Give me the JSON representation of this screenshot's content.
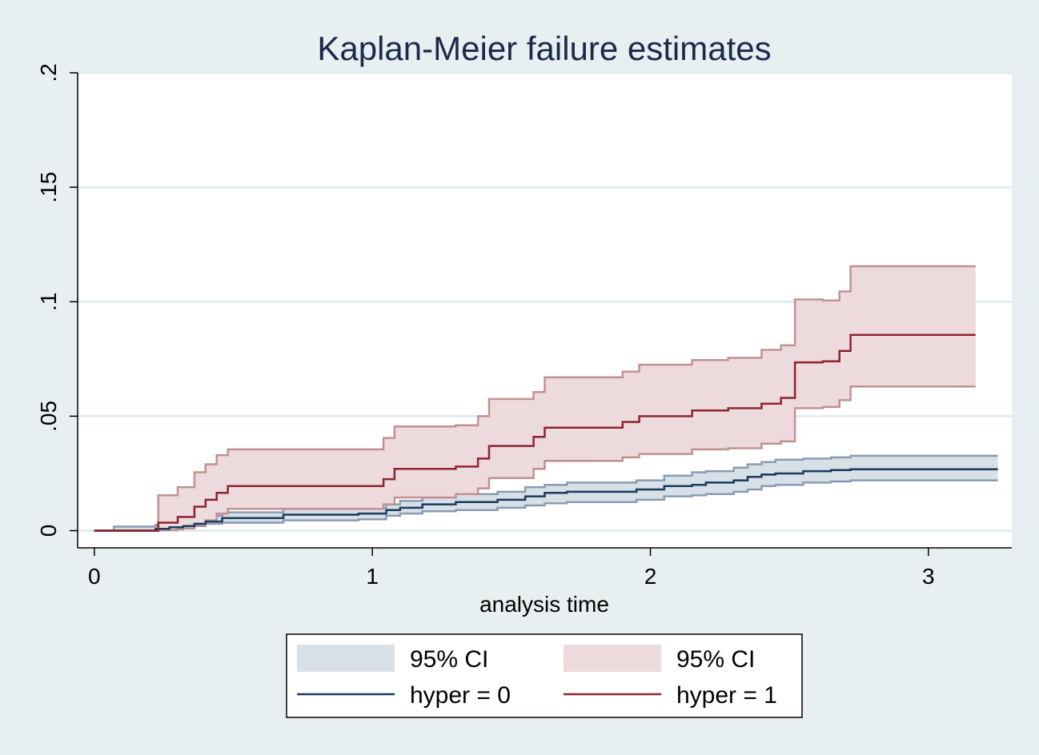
{
  "chart_data": {
    "type": "line",
    "title": "Kaplan-Meier failure estimates",
    "xlabel": "analysis time",
    "ylabel": "",
    "xlim": [
      -0.06,
      3.3
    ],
    "ylim": [
      -0.0075,
      0.2
    ],
    "x_ticks": [
      0,
      1,
      2,
      3
    ],
    "x_tick_labels": [
      "0",
      "1",
      "2",
      "3"
    ],
    "y_ticks": [
      0,
      0.05,
      0.1,
      0.15,
      0.2
    ],
    "y_tick_labels": [
      "0",
      ".05",
      ".1",
      ".15",
      ".2"
    ],
    "grid": true,
    "legend_position": "bottom",
    "colors": {
      "background": "#e8eff1",
      "plot_area": "#ffffff",
      "grid": "#e1ebee",
      "series0_line": "#1a3a5e",
      "series0_ci_fill": "#d7dfe7",
      "series0_ci_border": "#8a9cb2",
      "series1_line": "#8c2530",
      "series1_ci_fill": "#ecdadc",
      "series1_ci_border": "#c29094"
    },
    "legend": [
      {
        "label": "95% CI",
        "kind": "area",
        "series": 0
      },
      {
        "label": "95% CI",
        "kind": "area",
        "series": 1
      },
      {
        "label": "hyper = 0",
        "kind": "line",
        "series": 0
      },
      {
        "label": "hyper = 1",
        "kind": "line",
        "series": 1
      }
    ],
    "series": [
      {
        "name": "hyper = 0",
        "x": [
          0,
          0.07,
          0.22,
          0.27,
          0.32,
          0.36,
          0.4,
          0.46,
          0.68,
          0.95,
          1.05,
          1.1,
          1.18,
          1.3,
          1.45,
          1.55,
          1.62,
          1.7,
          1.95,
          2.05,
          2.15,
          2.2,
          2.3,
          2.35,
          2.4,
          2.45,
          2.55,
          2.65,
          2.72,
          3.25
        ],
        "y": [
          0,
          0,
          0.0008,
          0.0015,
          0.002,
          0.003,
          0.004,
          0.0055,
          0.007,
          0.0075,
          0.009,
          0.01,
          0.0115,
          0.0125,
          0.0135,
          0.015,
          0.0165,
          0.017,
          0.018,
          0.0195,
          0.02,
          0.021,
          0.022,
          0.0235,
          0.0245,
          0.025,
          0.026,
          0.0265,
          0.0268,
          0.0268
        ],
        "ci_low": [
          0,
          0,
          0.0002,
          0.0006,
          0.001,
          0.002,
          0.003,
          0.0035,
          0.0045,
          0.005,
          0.0065,
          0.0075,
          0.0085,
          0.009,
          0.01,
          0.011,
          0.012,
          0.0125,
          0.0135,
          0.015,
          0.0155,
          0.016,
          0.017,
          0.018,
          0.0195,
          0.02,
          0.021,
          0.0215,
          0.022,
          0.022
        ],
        "ci_high": [
          0,
          0.0018,
          0.0025,
          0.0035,
          0.004,
          0.0055,
          0.0065,
          0.008,
          0.0095,
          0.01,
          0.0115,
          0.013,
          0.0145,
          0.016,
          0.017,
          0.019,
          0.02,
          0.021,
          0.022,
          0.024,
          0.0255,
          0.026,
          0.0275,
          0.029,
          0.03,
          0.031,
          0.0315,
          0.032,
          0.0327,
          0.0327
        ]
      },
      {
        "name": "hyper = 1",
        "x": [
          0,
          0.23,
          0.3,
          0.36,
          0.4,
          0.44,
          0.48,
          1.0,
          1.04,
          1.08,
          1.3,
          1.38,
          1.42,
          1.58,
          1.62,
          1.9,
          1.96,
          2.15,
          2.28,
          2.4,
          2.47,
          2.52,
          2.62,
          2.68,
          2.72,
          3.17
        ],
        "y": [
          0,
          0.0035,
          0.006,
          0.0105,
          0.0135,
          0.0165,
          0.0195,
          0.0195,
          0.0225,
          0.027,
          0.028,
          0.0315,
          0.037,
          0.041,
          0.045,
          0.0475,
          0.05,
          0.0525,
          0.0535,
          0.0555,
          0.058,
          0.0735,
          0.074,
          0.0785,
          0.0855,
          0.0855
        ],
        "ci_low": [
          0,
          0.0003,
          0.001,
          0.0025,
          0.0045,
          0.0075,
          0.0095,
          0.0095,
          0.0115,
          0.0145,
          0.016,
          0.0185,
          0.023,
          0.027,
          0.0305,
          0.032,
          0.0335,
          0.0355,
          0.036,
          0.038,
          0.039,
          0.0535,
          0.054,
          0.057,
          0.063,
          0.063
        ],
        "ci_high": [
          0,
          0.0155,
          0.019,
          0.0255,
          0.029,
          0.033,
          0.0355,
          0.0355,
          0.0405,
          0.0455,
          0.046,
          0.05,
          0.0575,
          0.0605,
          0.067,
          0.0695,
          0.0725,
          0.0745,
          0.0755,
          0.079,
          0.081,
          0.101,
          0.1005,
          0.1045,
          0.1155,
          0.1155
        ]
      }
    ]
  }
}
